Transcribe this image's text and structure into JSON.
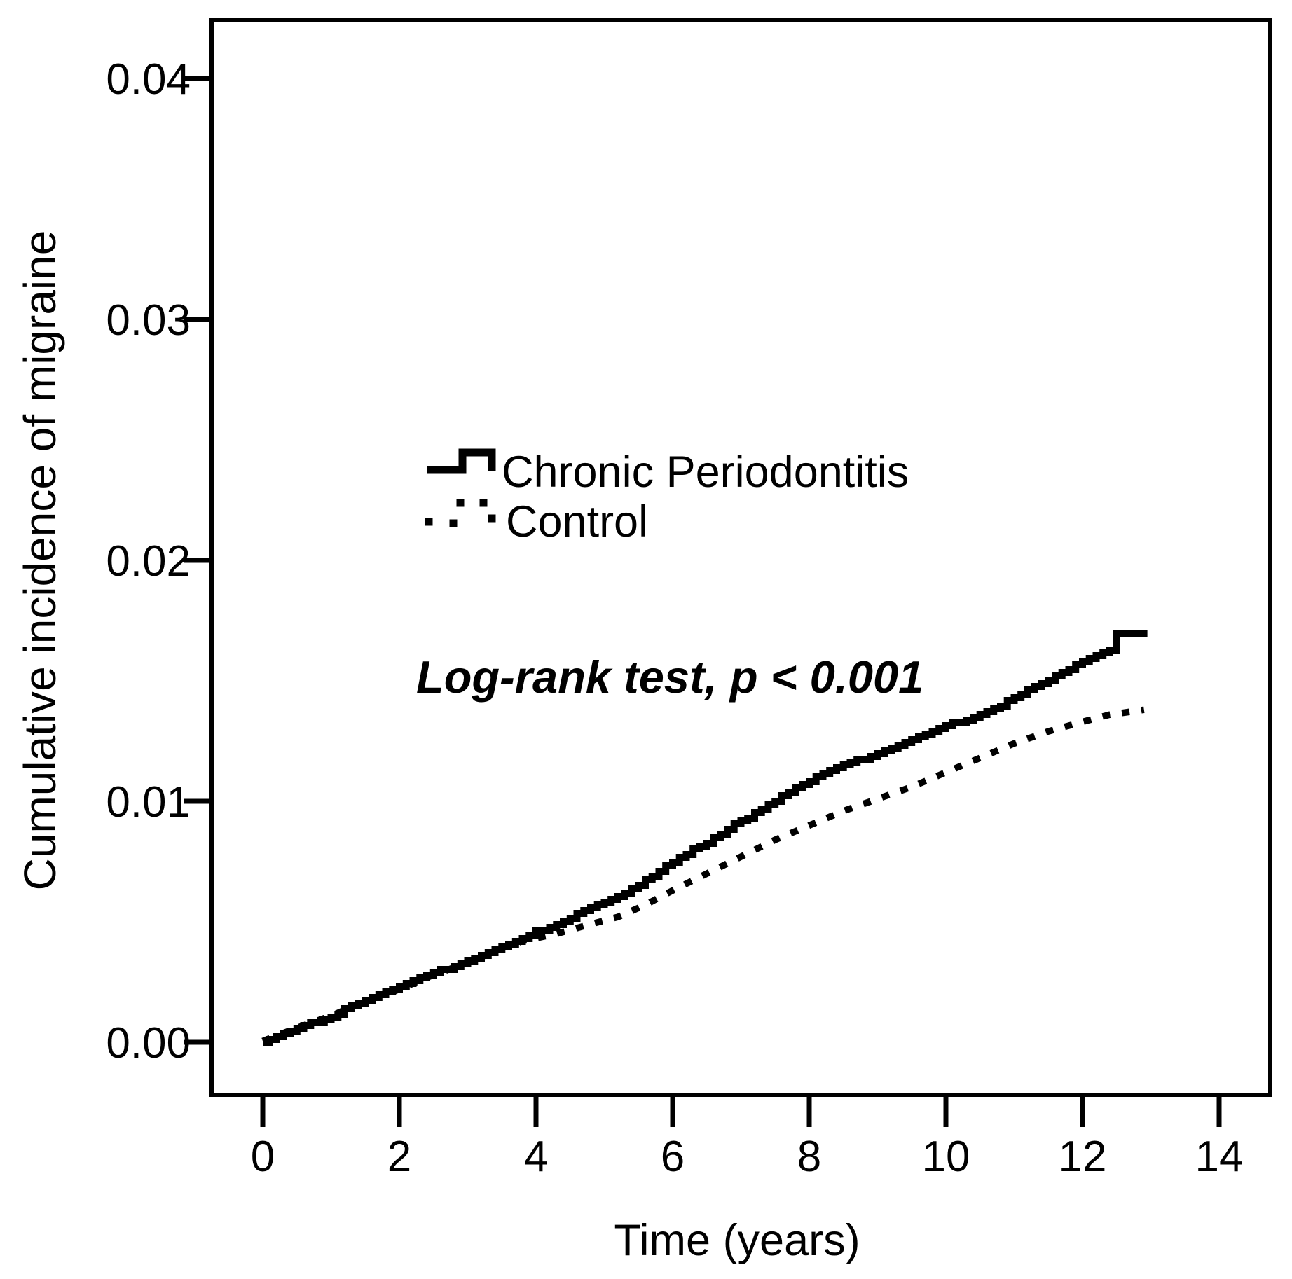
{
  "figure": {
    "background": "#ffffff",
    "ink": "#000000"
  },
  "chart_data": {
    "type": "line",
    "subtype": "kaplan-meier-cumulative-incidence",
    "title": "",
    "xlabel": "Time (years)",
    "ylabel": "Cumulative incidence of migraine",
    "xlim": [
      0,
      14
    ],
    "ylim": [
      0.0,
      0.04
    ],
    "grid": false,
    "legend_position": "inside-upper-center",
    "annotation": "Log-rank test, p < 0.001",
    "xticks": [
      {
        "v": 0,
        "label": "0"
      },
      {
        "v": 2,
        "label": "2"
      },
      {
        "v": 4,
        "label": "4"
      },
      {
        "v": 6,
        "label": "6"
      },
      {
        "v": 8,
        "label": "8"
      },
      {
        "v": 10,
        "label": "10"
      },
      {
        "v": 12,
        "label": "12"
      },
      {
        "v": 14,
        "label": "14"
      }
    ],
    "yticks": [
      {
        "v": 0.0,
        "label": "0.00"
      },
      {
        "v": 0.01,
        "label": "0.01"
      },
      {
        "v": 0.02,
        "label": "0.02"
      },
      {
        "v": 0.03,
        "label": "0.03"
      },
      {
        "v": 0.04,
        "label": "0.04"
      }
    ],
    "series": [
      {
        "name": "Chronic Periodontitis",
        "style": "solid-step",
        "points": [
          [
            0,
            5e-05
          ],
          [
            0.25,
            0.0003
          ],
          [
            0.5,
            0.0006
          ],
          [
            0.75,
            0.0008
          ],
          [
            1,
            0.0011
          ],
          [
            1.25,
            0.0014
          ],
          [
            1.5,
            0.0017
          ],
          [
            1.75,
            0.002
          ],
          [
            2,
            0.0023
          ],
          [
            2.25,
            0.0026
          ],
          [
            2.5,
            0.0029
          ],
          [
            2.75,
            0.0031
          ],
          [
            3,
            0.0034
          ],
          [
            3.3,
            0.0037
          ],
          [
            3.6,
            0.0041
          ],
          [
            4,
            0.0046
          ],
          [
            4.3,
            0.0049
          ],
          [
            4.6,
            0.0053
          ],
          [
            5,
            0.0058
          ],
          [
            5.3,
            0.0062
          ],
          [
            5.6,
            0.0067
          ],
          [
            5.9,
            0.0073
          ],
          [
            6.2,
            0.0078
          ],
          [
            6.5,
            0.0083
          ],
          [
            7,
            0.0092
          ],
          [
            7.5,
            0.01
          ],
          [
            7.9,
            0.0107
          ],
          [
            8.2,
            0.0112
          ],
          [
            8.5,
            0.0115
          ],
          [
            8.8,
            0.0118
          ],
          [
            9.2,
            0.0122
          ],
          [
            9.6,
            0.0127
          ],
          [
            10,
            0.0131
          ],
          [
            10.4,
            0.0135
          ],
          [
            10.8,
            0.014
          ],
          [
            11.2,
            0.0146
          ],
          [
            11.6,
            0.0152
          ],
          [
            12,
            0.0158
          ],
          [
            12.2,
            0.0161
          ],
          [
            12.4,
            0.0163
          ],
          [
            12.5,
            0.017
          ],
          [
            12.95,
            0.017
          ]
        ]
      },
      {
        "name": "Control",
        "style": "dotted",
        "points": [
          [
            0,
            5e-05
          ],
          [
            0.5,
            0.0006
          ],
          [
            1,
            0.0011
          ],
          [
            1.5,
            0.0017
          ],
          [
            2,
            0.0022
          ],
          [
            2.5,
            0.0028
          ],
          [
            3,
            0.0033
          ],
          [
            3.5,
            0.0039
          ],
          [
            3.8,
            0.0042
          ],
          [
            4.3,
            0.0045
          ],
          [
            4.8,
            0.0049
          ],
          [
            5.2,
            0.0052
          ],
          [
            5.6,
            0.0057
          ],
          [
            6,
            0.0063
          ],
          [
            6.5,
            0.007
          ],
          [
            7,
            0.0077
          ],
          [
            7.5,
            0.0084
          ],
          [
            8,
            0.009
          ],
          [
            8.5,
            0.0096
          ],
          [
            9,
            0.0101
          ],
          [
            9.5,
            0.0106
          ],
          [
            10,
            0.0112
          ],
          [
            10.5,
            0.0118
          ],
          [
            11,
            0.0124
          ],
          [
            11.5,
            0.0129
          ],
          [
            12,
            0.0133
          ],
          [
            12.4,
            0.0136
          ],
          [
            12.9,
            0.0138
          ]
        ]
      }
    ]
  }
}
